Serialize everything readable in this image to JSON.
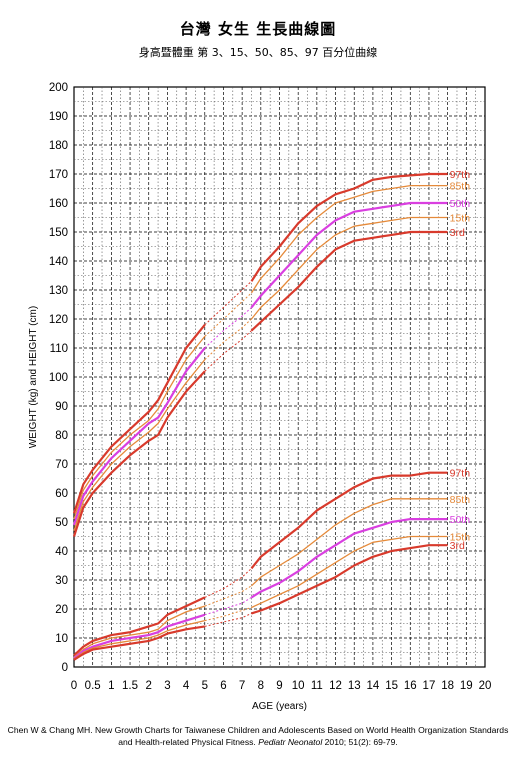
{
  "header": {
    "title": "台灣  女生  生長曲線圖",
    "subtitle": "身高暨體重  第 3、15、50、85、97 百分位曲線"
  },
  "citation": {
    "prefix": "Chen W & Chang MH. New Growth Charts for Taiwanese Children and Adolescents Based on World Health Organization Standards and Health-related Physical Fitness. ",
    "journal": "Pediatr Neonatol",
    "suffix": " 2010; 51(2): 69-79."
  },
  "colors": {
    "p97": "#d83a2c",
    "p85": "#e58a3a",
    "p50": "#d93fe0",
    "p15": "#e58a3a",
    "p3": "#d83a2c"
  },
  "chart_data": {
    "type": "line",
    "title": "台灣  女生  生長曲線圖",
    "xlabel": "AGE (years)",
    "ylabel": "WEIGHT (kg) and HEIGHT (cm)",
    "xlim": [
      0,
      20
    ],
    "ylim": [
      0,
      200
    ],
    "x_ticks": [
      "0",
      "0.5",
      "1",
      "1.5",
      "2",
      "3",
      "4",
      "5",
      "6",
      "7",
      "8",
      "9",
      "10",
      "11",
      "12",
      "13",
      "14",
      "15",
      "16",
      "17",
      "18",
      "19",
      "20"
    ],
    "y_ticks": [
      "0",
      "10",
      "20",
      "30",
      "40",
      "50",
      "60",
      "70",
      "80",
      "90",
      "100",
      "110",
      "120",
      "130",
      "140",
      "150",
      "160",
      "170",
      "180",
      "190",
      "200"
    ],
    "grid": true,
    "height_series": [
      {
        "name": "97th",
        "color": "#d83a2c",
        "bold": true,
        "early": [
          [
            0,
            53
          ],
          [
            0.25,
            63
          ],
          [
            0.5,
            68
          ],
          [
            1,
            76
          ],
          [
            1.5,
            82
          ],
          [
            2,
            88
          ],
          [
            2.5,
            92
          ],
          [
            3,
            98
          ],
          [
            4,
            110
          ],
          [
            5,
            118
          ]
        ],
        "gap": [
          [
            5,
            118
          ],
          [
            6,
            124
          ],
          [
            7,
            130
          ],
          [
            7.5,
            133
          ]
        ],
        "late": [
          [
            7.5,
            133
          ],
          [
            8,
            138
          ],
          [
            9,
            145
          ],
          [
            10,
            153
          ],
          [
            11,
            159
          ],
          [
            12,
            163
          ],
          [
            13,
            165
          ],
          [
            14,
            168
          ],
          [
            15,
            169
          ],
          [
            16,
            169.5
          ],
          [
            17,
            170
          ],
          [
            18,
            170
          ]
        ]
      },
      {
        "name": "85th",
        "color": "#e58a3a",
        "bold": false,
        "early": [
          [
            0,
            51
          ],
          [
            0.25,
            61
          ],
          [
            0.5,
            66
          ],
          [
            1,
            74
          ],
          [
            1.5,
            80
          ],
          [
            2,
            85
          ],
          [
            2.5,
            89
          ],
          [
            3,
            95
          ],
          [
            4,
            106
          ],
          [
            5,
            114
          ]
        ],
        "gap": [
          [
            5,
            114
          ],
          [
            6,
            120
          ],
          [
            7,
            126
          ],
          [
            7.5,
            129
          ]
        ],
        "late": [
          [
            7.5,
            129
          ],
          [
            8,
            134
          ],
          [
            9,
            141
          ],
          [
            10,
            149
          ],
          [
            11,
            155
          ],
          [
            12,
            160
          ],
          [
            13,
            162
          ],
          [
            14,
            164
          ],
          [
            15,
            165
          ],
          [
            16,
            166
          ],
          [
            17,
            166
          ],
          [
            18,
            166
          ]
        ]
      },
      {
        "name": "50th",
        "color": "#d93fe0",
        "bold": true,
        "early": [
          [
            0,
            49
          ],
          [
            0.25,
            59
          ],
          [
            0.5,
            64
          ],
          [
            1,
            72
          ],
          [
            1.5,
            78
          ],
          [
            2,
            84
          ],
          [
            2.5,
            86
          ],
          [
            3,
            91
          ],
          [
            4,
            102
          ],
          [
            5,
            110
          ]
        ],
        "gap": [
          [
            5,
            110
          ],
          [
            6,
            116
          ],
          [
            7,
            121
          ],
          [
            7.5,
            124
          ]
        ],
        "late": [
          [
            7.5,
            124
          ],
          [
            8,
            128
          ],
          [
            9,
            135
          ],
          [
            10,
            142
          ],
          [
            11,
            149
          ],
          [
            12,
            154
          ],
          [
            13,
            157
          ],
          [
            14,
            158
          ],
          [
            15,
            159
          ],
          [
            16,
            160
          ],
          [
            17,
            160
          ],
          [
            18,
            160
          ]
        ]
      },
      {
        "name": "15th",
        "color": "#e58a3a",
        "bold": false,
        "early": [
          [
            0,
            47
          ],
          [
            0.25,
            57
          ],
          [
            0.5,
            62
          ],
          [
            1,
            70
          ],
          [
            1.5,
            76
          ],
          [
            2,
            81
          ],
          [
            2.5,
            84
          ],
          [
            3,
            89
          ],
          [
            4,
            98
          ],
          [
            5,
            106
          ]
        ],
        "gap": [
          [
            5,
            106
          ],
          [
            6,
            112
          ],
          [
            7,
            117
          ],
          [
            7.5,
            120
          ]
        ],
        "late": [
          [
            7.5,
            120
          ],
          [
            8,
            124
          ],
          [
            9,
            130
          ],
          [
            10,
            137
          ],
          [
            11,
            144
          ],
          [
            12,
            149
          ],
          [
            13,
            152
          ],
          [
            14,
            153
          ],
          [
            15,
            154
          ],
          [
            16,
            155
          ],
          [
            17,
            155
          ],
          [
            18,
            155
          ]
        ]
      },
      {
        "name": "3rd",
        "color": "#d83a2c",
        "bold": true,
        "early": [
          [
            0,
            45
          ],
          [
            0.25,
            55
          ],
          [
            0.5,
            60
          ],
          [
            1,
            67
          ],
          [
            1.5,
            73
          ],
          [
            2,
            78
          ],
          [
            2.5,
            80
          ],
          [
            3,
            86
          ],
          [
            4,
            95
          ],
          [
            5,
            102
          ]
        ],
        "gap": [
          [
            5,
            102
          ],
          [
            6,
            108
          ],
          [
            7,
            113
          ],
          [
            7.5,
            116
          ]
        ],
        "late": [
          [
            7.5,
            116
          ],
          [
            8,
            119
          ],
          [
            9,
            125
          ],
          [
            10,
            131
          ],
          [
            11,
            138
          ],
          [
            12,
            144
          ],
          [
            13,
            147
          ],
          [
            14,
            148
          ],
          [
            15,
            149
          ],
          [
            16,
            150
          ],
          [
            17,
            150
          ],
          [
            18,
            150
          ]
        ]
      }
    ],
    "weight_series": [
      {
        "name": "97th",
        "color": "#d83a2c",
        "bold": true,
        "early": [
          [
            0,
            4
          ],
          [
            0.25,
            7
          ],
          [
            0.5,
            9
          ],
          [
            1,
            11
          ],
          [
            1.5,
            12
          ],
          [
            2,
            14
          ],
          [
            2.5,
            15
          ],
          [
            3,
            18
          ],
          [
            4,
            21
          ],
          [
            5,
            24
          ]
        ],
        "gap": [
          [
            5,
            24
          ],
          [
            6,
            27
          ],
          [
            7,
            31
          ],
          [
            7.5,
            34
          ]
        ],
        "late": [
          [
            7.5,
            34
          ],
          [
            8,
            38
          ],
          [
            9,
            43
          ],
          [
            10,
            48
          ],
          [
            11,
            54
          ],
          [
            12,
            58
          ],
          [
            13,
            62
          ],
          [
            14,
            65
          ],
          [
            15,
            66
          ],
          [
            16,
            66
          ],
          [
            17,
            67
          ],
          [
            18,
            67
          ]
        ]
      },
      {
        "name": "85th",
        "color": "#e58a3a",
        "bold": false,
        "early": [
          [
            0,
            3.5
          ],
          [
            0.25,
            6
          ],
          [
            0.5,
            8
          ],
          [
            1,
            10
          ],
          [
            1.5,
            11
          ],
          [
            2,
            12
          ],
          [
            2.5,
            13
          ],
          [
            3,
            16
          ],
          [
            4,
            19
          ],
          [
            5,
            21
          ]
        ],
        "gap": [
          [
            5,
            21
          ],
          [
            6,
            23.5
          ],
          [
            7,
            26
          ],
          [
            7.5,
            28
          ]
        ],
        "late": [
          [
            7.5,
            28
          ],
          [
            8,
            31
          ],
          [
            9,
            35
          ],
          [
            10,
            39
          ],
          [
            11,
            44
          ],
          [
            12,
            49
          ],
          [
            13,
            53
          ],
          [
            14,
            56
          ],
          [
            15,
            58
          ],
          [
            16,
            58
          ],
          [
            17,
            58
          ],
          [
            18,
            58
          ]
        ]
      },
      {
        "name": "50th",
        "color": "#d93fe0",
        "bold": true,
        "early": [
          [
            0,
            3
          ],
          [
            0.25,
            5.5
          ],
          [
            0.5,
            7
          ],
          [
            1,
            9
          ],
          [
            1.5,
            10
          ],
          [
            2,
            11
          ],
          [
            2.5,
            12
          ],
          [
            3,
            14
          ],
          [
            4,
            16
          ],
          [
            5,
            18
          ]
        ],
        "gap": [
          [
            5,
            18
          ],
          [
            6,
            20
          ],
          [
            7,
            22
          ],
          [
            7.5,
            24
          ]
        ],
        "late": [
          [
            7.5,
            24
          ],
          [
            8,
            26
          ],
          [
            9,
            29
          ],
          [
            10,
            33
          ],
          [
            11,
            38
          ],
          [
            12,
            42
          ],
          [
            13,
            46
          ],
          [
            14,
            48
          ],
          [
            15,
            50
          ],
          [
            16,
            51
          ],
          [
            17,
            51
          ],
          [
            18,
            51
          ]
        ]
      },
      {
        "name": "15th",
        "color": "#e58a3a",
        "bold": false,
        "early": [
          [
            0,
            2.8
          ],
          [
            0.25,
            5
          ],
          [
            0.5,
            6.5
          ],
          [
            1,
            8
          ],
          [
            1.5,
            9
          ],
          [
            2,
            10
          ],
          [
            2.5,
            11
          ],
          [
            3,
            12.5
          ],
          [
            4,
            14.5
          ],
          [
            5,
            16
          ]
        ],
        "gap": [
          [
            5,
            16
          ],
          [
            6,
            17.5
          ],
          [
            7,
            19.5
          ],
          [
            7.5,
            20.5
          ]
        ],
        "late": [
          [
            7.5,
            20.5
          ],
          [
            8,
            22
          ],
          [
            9,
            25
          ],
          [
            10,
            28
          ],
          [
            11,
            32
          ],
          [
            12,
            36
          ],
          [
            13,
            40
          ],
          [
            14,
            43
          ],
          [
            15,
            44
          ],
          [
            16,
            45
          ],
          [
            17,
            45
          ],
          [
            18,
            45
          ]
        ]
      },
      {
        "name": "3rd",
        "color": "#d83a2c",
        "bold": true,
        "early": [
          [
            0,
            2.5
          ],
          [
            0.25,
            4.5
          ],
          [
            0.5,
            6
          ],
          [
            1,
            7
          ],
          [
            1.5,
            8
          ],
          [
            2,
            9
          ],
          [
            2.5,
            10
          ],
          [
            3,
            11.5
          ],
          [
            4,
            13
          ],
          [
            5,
            14
          ]
        ],
        "gap": [
          [
            5,
            14
          ],
          [
            6,
            15.5
          ],
          [
            7,
            17
          ],
          [
            7.5,
            18.5
          ]
        ],
        "late": [
          [
            7.5,
            18.5
          ],
          [
            8,
            19.5
          ],
          [
            9,
            22
          ],
          [
            10,
            25
          ],
          [
            11,
            28
          ],
          [
            12,
            31
          ],
          [
            13,
            35
          ],
          [
            14,
            38
          ],
          [
            15,
            40
          ],
          [
            16,
            41
          ],
          [
            17,
            42
          ],
          [
            18,
            42
          ]
        ]
      }
    ]
  }
}
